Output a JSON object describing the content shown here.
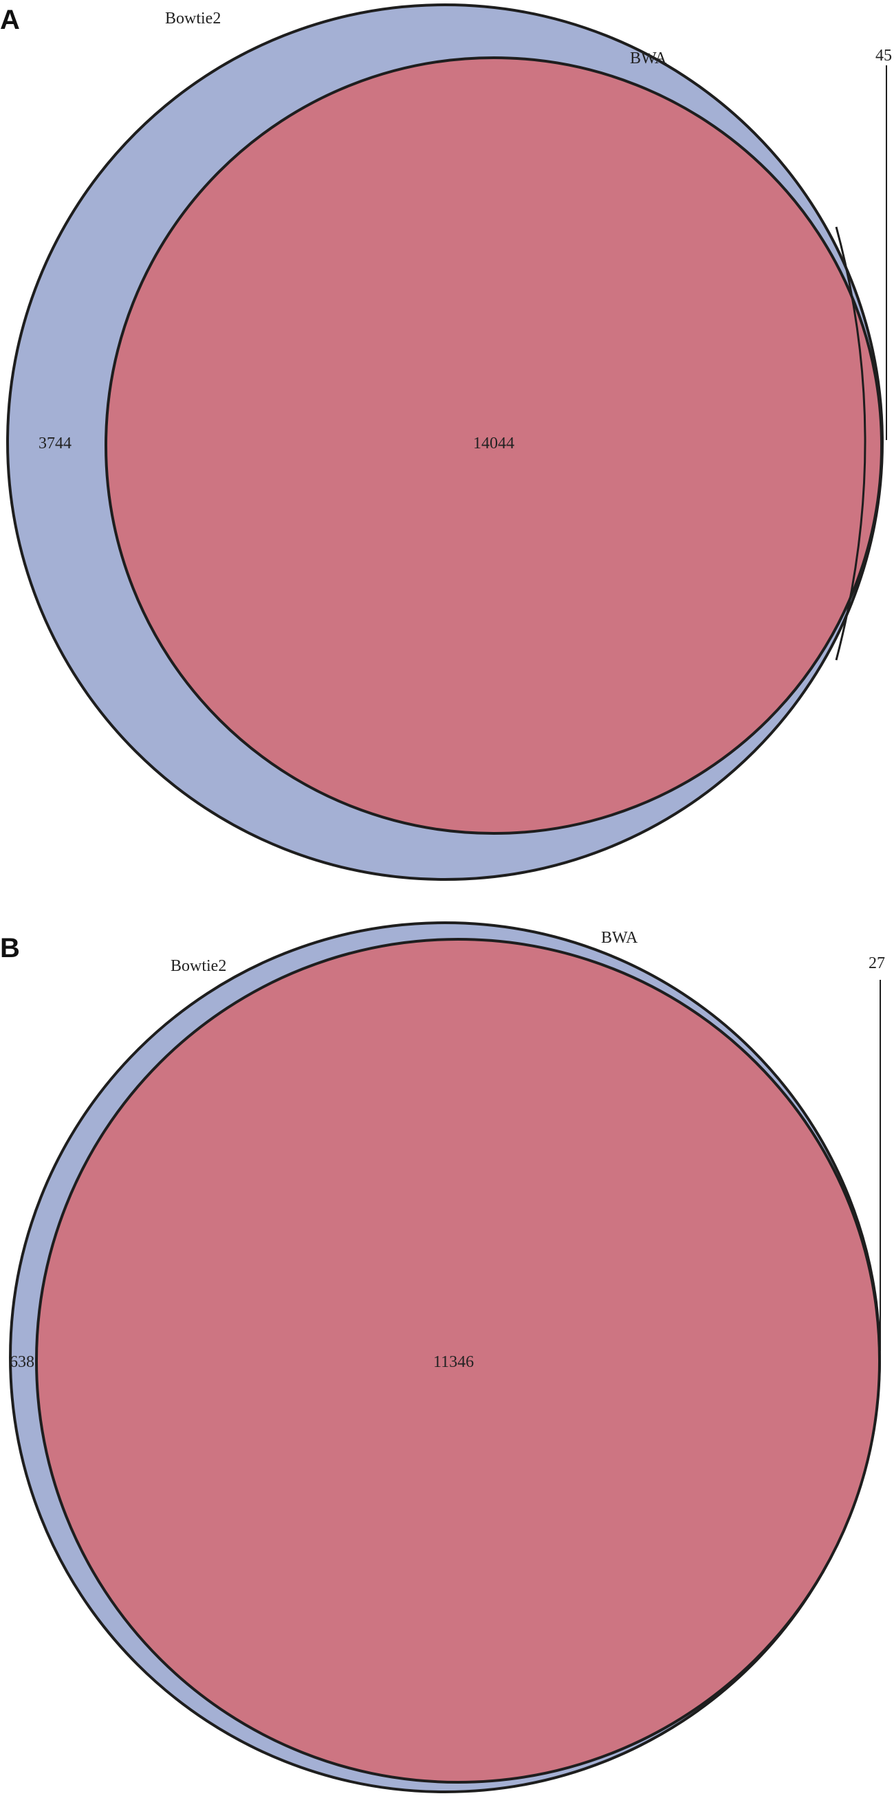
{
  "colors": {
    "bowtie2_fill": "#a4b0d4",
    "bwa_fill": "#cd7582",
    "outline": "#1e1e1e",
    "text": "#222222"
  },
  "panels": [
    {
      "letter": "A",
      "set_labels": {
        "bowtie2": "Bowtie2",
        "bwa": "BWA"
      },
      "counts": {
        "bowtie2_only": "3744",
        "both": "14044",
        "bwa_only": "45"
      }
    },
    {
      "letter": "B",
      "set_labels": {
        "bowtie2": "Bowtie2",
        "bwa": "BWA"
      },
      "counts": {
        "bowtie2_only": "638",
        "both": "11346",
        "bwa_only": "27"
      }
    }
  ]
}
